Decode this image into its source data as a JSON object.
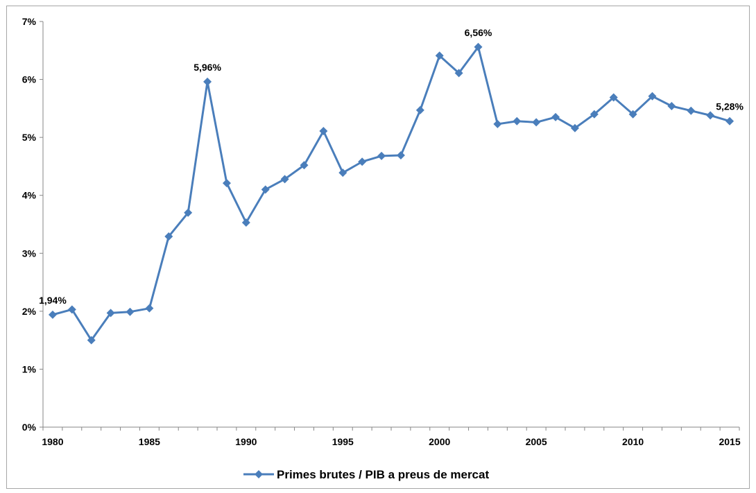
{
  "chart_data": {
    "type": "line",
    "title": "",
    "xlabel": "",
    "ylabel": "",
    "x": [
      1980,
      1981,
      1982,
      1983,
      1984,
      1985,
      1986,
      1987,
      1988,
      1989,
      1990,
      1991,
      1992,
      1993,
      1994,
      1995,
      1996,
      1997,
      1998,
      1999,
      2000,
      2001,
      2002,
      2003,
      2004,
      2005,
      2006,
      2007,
      2008,
      2009,
      2010,
      2011,
      2012,
      2013,
      2014,
      2015
    ],
    "series": [
      {
        "name": "Primes brutes / PIB a preus de mercat",
        "color": "#4a7ebb",
        "values": [
          1.94,
          2.03,
          1.5,
          1.97,
          1.99,
          2.05,
          3.29,
          3.7,
          5.96,
          4.21,
          3.53,
          4.1,
          4.28,
          4.52,
          5.11,
          4.39,
          4.58,
          4.68,
          4.69,
          5.47,
          6.41,
          6.11,
          6.56,
          5.23,
          5.28,
          5.26,
          5.35,
          5.16,
          5.4,
          5.69,
          5.4,
          5.71,
          5.54,
          5.46,
          5.38,
          5.28
        ]
      }
    ],
    "ylim": [
      0,
      7
    ],
    "y_ticks": [
      "0%",
      "1%",
      "2%",
      "3%",
      "4%",
      "5%",
      "6%",
      "7%"
    ],
    "x_ticks": [
      "1980",
      "1985",
      "1990",
      "1995",
      "2000",
      "2005",
      "2010",
      "2015"
    ],
    "data_labels": [
      {
        "year": 1980,
        "text": "1,94%"
      },
      {
        "year": 1988,
        "text": "5,96%"
      },
      {
        "year": 2002,
        "text": "6,56%"
      },
      {
        "year": 2015,
        "text": "5,28%"
      }
    ],
    "grid": false,
    "legend_position": "bottom"
  }
}
